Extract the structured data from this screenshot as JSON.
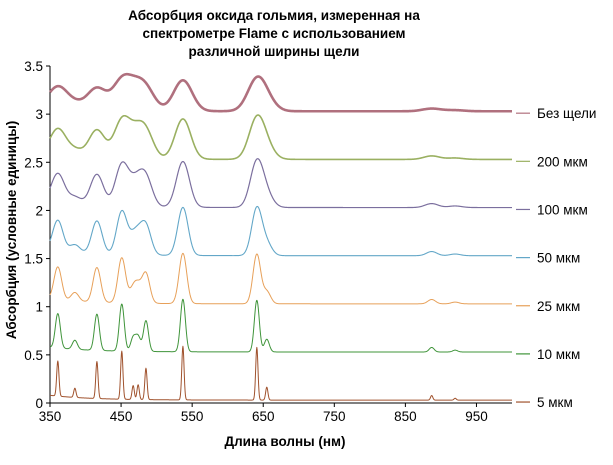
{
  "chart_data": {
    "type": "line",
    "title_lines": [
      "Абсорбция оксида гольмия, измеренная на",
      "спектрометре Flame с использованием",
      "различной ширины щели"
    ],
    "xlabel": "Длина волны (нм)",
    "ylabel": "Абсорбция (условные единицы)",
    "xlim": [
      350,
      1000
    ],
    "ylim": [
      0,
      3.5
    ],
    "xticks": [
      350,
      450,
      550,
      650,
      750,
      850,
      950
    ],
    "xtick_labels": [
      "350",
      "450",
      "550",
      "650",
      "750",
      "850",
      "950"
    ],
    "yticks": [
      0,
      0.5,
      1,
      1.5,
      2,
      2.5,
      3,
      3.5
    ],
    "ytick_labels": [
      "0",
      "0.5",
      "1",
      "1.5",
      "2",
      "2.5",
      "3",
      "3.5"
    ],
    "legend_position": "right",
    "series": [
      {
        "name": "Без щели",
        "color": "#b0707e",
        "baseline": 3.03,
        "scale": 0.55,
        "width": 2.6
      },
      {
        "name": "200 мкм",
        "color": "#9ab061",
        "baseline": 2.53,
        "scale": 0.72,
        "width": 1.6
      },
      {
        "name": "100 мкм",
        "color": "#7b6f9e",
        "baseline": 2.03,
        "scale": 0.82,
        "width": 1.2
      },
      {
        "name": "50 мкм",
        "color": "#63a7c8",
        "baseline": 1.53,
        "scale": 0.86,
        "width": 1.1
      },
      {
        "name": "25 мкм",
        "color": "#e7a059",
        "baseline": 1.03,
        "scale": 0.9,
        "width": 1.0
      },
      {
        "name": "10 мкм",
        "color": "#3f943a",
        "baseline": 0.53,
        "scale": 0.94,
        "width": 1.0
      },
      {
        "name": "5 мкм",
        "color": "#a0522d",
        "baseline": 0.03,
        "scale": 0.96,
        "width": 1.0
      }
    ],
    "peaks": [
      {
        "x": 361,
        "h": 0.38
      },
      {
        "x": 385,
        "h": 0.1
      },
      {
        "x": 416,
        "h": 0.4
      },
      {
        "x": 451,
        "h": 0.52
      },
      {
        "x": 467,
        "h": 0.15
      },
      {
        "x": 474,
        "h": 0.16
      },
      {
        "x": 485,
        "h": 0.34
      },
      {
        "x": 537,
        "h": 0.58
      },
      {
        "x": 641,
        "h": 0.57
      },
      {
        "x": 655,
        "h": 0.14
      },
      {
        "x": 887,
        "h": 0.05
      },
      {
        "x": 920,
        "h": 0.02
      }
    ]
  }
}
